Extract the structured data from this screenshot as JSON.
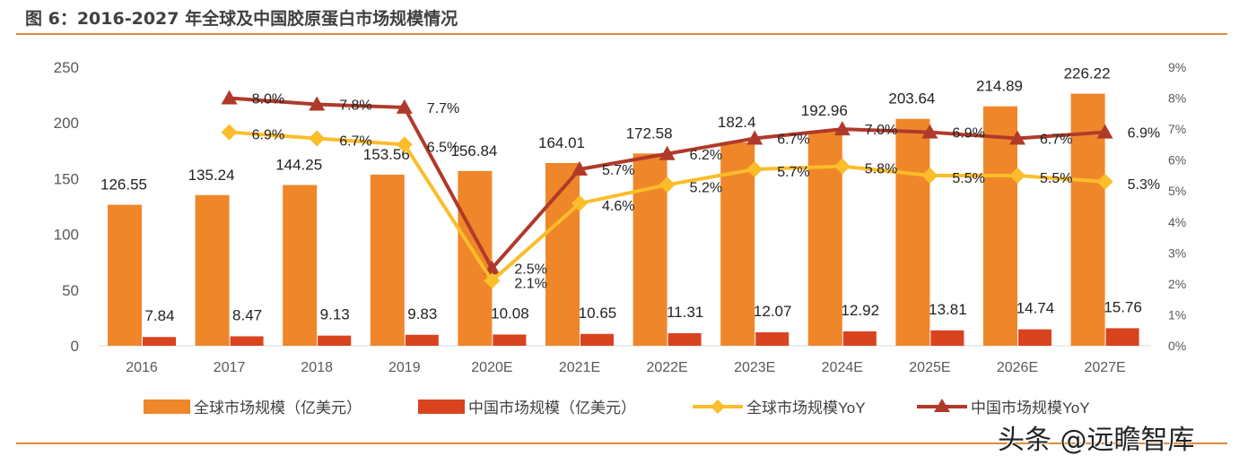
{
  "title": "图 6：2016-2027 年全球及中国胶原蛋白市场规模情况",
  "watermark": "头条 @远瞻智库",
  "chart_data": {
    "type": "bar+line",
    "categories": [
      "2016",
      "2017",
      "2018",
      "2019",
      "2020E",
      "2021E",
      "2022E",
      "2023E",
      "2024E",
      "2025E",
      "2026E",
      "2027E"
    ],
    "y_left": {
      "range": [
        0,
        250
      ],
      "ticks": [
        "0",
        "50",
        "100",
        "150",
        "200",
        "250"
      ]
    },
    "y_right": {
      "range": [
        0,
        9
      ],
      "ticks": [
        "0%",
        "1%",
        "2%",
        "3%",
        "4%",
        "5%",
        "6%",
        "7%",
        "8%",
        "9%"
      ]
    },
    "series": [
      {
        "name": "全球市场规模（亿美元）",
        "type": "bar",
        "axis": "left",
        "color": "#f0862a",
        "values": [
          126.55,
          135.24,
          144.25,
          153.56,
          156.84,
          164.01,
          172.58,
          182.4,
          192.96,
          203.64,
          214.89,
          226.22
        ],
        "labels": [
          "126.55",
          "135.24",
          "144.25",
          "153.56",
          "156.84",
          "164.01",
          "172.58",
          "182.4",
          "192.96",
          "203.64",
          "214.89",
          "226.22"
        ]
      },
      {
        "name": "中国市场规模（亿美元）",
        "type": "bar",
        "axis": "left",
        "color": "#d9431e",
        "values": [
          7.84,
          8.47,
          9.13,
          9.83,
          10.08,
          10.65,
          11.31,
          12.07,
          12.92,
          13.81,
          14.74,
          15.76
        ],
        "labels": [
          "7.84",
          "8.47",
          "9.13",
          "9.83",
          "10.08",
          "10.65",
          "11.31",
          "12.07",
          "12.92",
          "13.81",
          "14.74",
          "15.76"
        ]
      },
      {
        "name": "全球市场规模YoY",
        "type": "line",
        "axis": "right",
        "color": "#fbbd2a",
        "marker": "diamond",
        "values": [
          null,
          6.9,
          6.7,
          6.5,
          2.1,
          4.6,
          5.2,
          5.7,
          5.8,
          5.5,
          5.5,
          5.3
        ],
        "labels": [
          "",
          "6.9%",
          "6.7%",
          "6.5%",
          "2.1%",
          "4.6%",
          "5.2%",
          "5.7%",
          "5.8%",
          "5.5%",
          "5.5%",
          "5.3%"
        ]
      },
      {
        "name": "中国市场规模YoY",
        "type": "line",
        "axis": "right",
        "color": "#b03a2a",
        "marker": "triangle",
        "values": [
          null,
          8.0,
          7.8,
          7.7,
          2.5,
          5.7,
          6.2,
          6.7,
          7.0,
          6.9,
          6.7,
          6.9
        ],
        "labels": [
          "",
          "8.0%",
          "7.8%",
          "7.7%",
          "2.5%",
          "5.7%",
          "6.2%",
          "6.7%",
          "7.0%",
          "6.9%",
          "6.7%",
          "6.9%"
        ]
      }
    ],
    "legend": "bottom",
    "grid": false
  }
}
